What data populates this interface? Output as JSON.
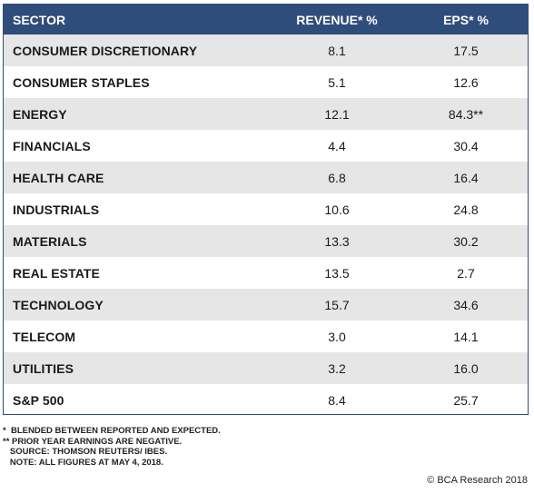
{
  "table": {
    "headers": {
      "sector": "SECTOR",
      "revenue": "REVENUE* %",
      "eps": "EPS* %"
    },
    "rows": [
      {
        "sector": "CONSUMER DISCRETIONARY",
        "revenue": "8.1",
        "eps": "17.5"
      },
      {
        "sector": "CONSUMER STAPLES",
        "revenue": "5.1",
        "eps": "12.6"
      },
      {
        "sector": "ENERGY",
        "revenue": "12.1",
        "eps": "84.3**"
      },
      {
        "sector": "FINANCIALS",
        "revenue": "4.4",
        "eps": "30.4"
      },
      {
        "sector": "HEALTH CARE",
        "revenue": "6.8",
        "eps": "16.4"
      },
      {
        "sector": "INDUSTRIALS",
        "revenue": "10.6",
        "eps": "24.8"
      },
      {
        "sector": "MATERIALS",
        "revenue": "13.3",
        "eps": "30.2"
      },
      {
        "sector": "REAL ESTATE",
        "revenue": "13.5",
        "eps": "2.7"
      },
      {
        "sector": "TECHNOLOGY",
        "revenue": "15.7",
        "eps": "34.6"
      },
      {
        "sector": "TELECOM",
        "revenue": "3.0",
        "eps": "14.1"
      },
      {
        "sector": "UTILITIES",
        "revenue": "3.2",
        "eps": "16.0"
      },
      {
        "sector": "S&P 500",
        "revenue": "8.4",
        "eps": "25.7"
      }
    ]
  },
  "footnotes": [
    "*  BLENDED BETWEEN REPORTED AND EXPECTED.",
    "** PRIOR YEAR EARNINGS ARE NEGATIVE.",
    "   SOURCE: THOMSON REUTERS/ IBES.",
    "   NOTE: ALL FIGURES AT MAY 4, 2018."
  ],
  "copyright": "© BCA Research 2018",
  "colors": {
    "header_bg": "#2f4d7a",
    "shaded_row": "#e6e6e6"
  }
}
